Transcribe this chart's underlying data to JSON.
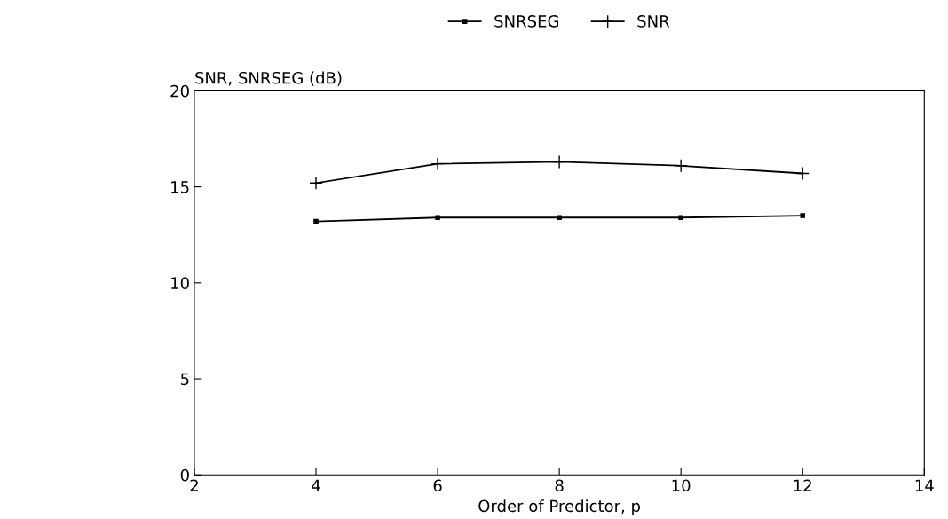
{
  "chart_data": {
    "type": "line",
    "ylabel": "SNR, SNRSEG (dB)",
    "xlabel": "Order of Predictor, p",
    "x": [
      4,
      6,
      8,
      10,
      12
    ],
    "series": [
      {
        "name": "SNRSEG",
        "color": "#000000",
        "marker": "square",
        "values": [
          13.2,
          13.4,
          13.4,
          13.4,
          13.5
        ]
      },
      {
        "name": "SNR",
        "color": "#000000",
        "marker": "cross",
        "values": [
          15.2,
          16.2,
          16.3,
          16.1,
          15.7
        ]
      }
    ],
    "xlim": [
      2,
      14
    ],
    "xticks": [
      2,
      4,
      6,
      8,
      10,
      12,
      14
    ],
    "ylim": [
      0,
      20
    ],
    "yticks": [
      0,
      5,
      10,
      15,
      20
    ],
    "grid": false,
    "legend": "top",
    "line_style": "solid"
  }
}
